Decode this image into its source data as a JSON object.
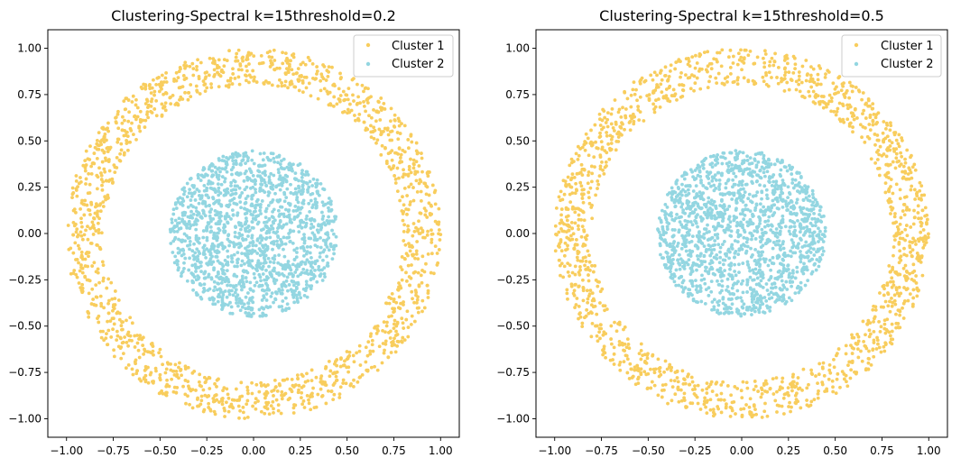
{
  "chart_data": [
    {
      "type": "scatter",
      "title": "Clustering-Spectral k=15threshold=0.2",
      "xlabel": "",
      "ylabel": "",
      "xlim": [
        -1.1,
        1.1
      ],
      "ylim": [
        -1.1,
        1.1
      ],
      "xticks": [
        "−1.00",
        "−0.75",
        "−0.50",
        "−0.25",
        "0.00",
        "0.25",
        "0.50",
        "0.75",
        "1.00"
      ],
      "yticks": [
        "1.00",
        "0.75",
        "0.50",
        "0.25",
        "0.00",
        "−0.25",
        "−0.50",
        "−0.75",
        "−1.00"
      ],
      "grid": false,
      "legend_position": "top-right",
      "series": [
        {
          "name": "Cluster 1",
          "color": "#f8cd5d",
          "shape": "annulus",
          "center": [
            0,
            0
          ],
          "inner_radius": 0.8,
          "outer_radius": 1.0,
          "count": 1500
        },
        {
          "name": "Cluster 2",
          "color": "#93d6e1",
          "shape": "disk",
          "center": [
            0,
            0
          ],
          "radius": 0.45,
          "count": 1500
        }
      ]
    },
    {
      "type": "scatter",
      "title": "Clustering-Spectral k=15threshold=0.5",
      "xlabel": "",
      "ylabel": "",
      "xlim": [
        -1.1,
        1.1
      ],
      "ylim": [
        -1.1,
        1.1
      ],
      "xticks": [
        "−1.00",
        "−0.75",
        "−0.50",
        "−0.25",
        "0.00",
        "0.25",
        "0.50",
        "0.75",
        "1.00"
      ],
      "yticks": [
        "1.00",
        "0.75",
        "0.50",
        "0.25",
        "0.00",
        "−0.25",
        "−0.50",
        "−0.75",
        "−1.00"
      ],
      "grid": false,
      "legend_position": "top-right",
      "series": [
        {
          "name": "Cluster 1",
          "color": "#f8cd5d",
          "shape": "annulus",
          "center": [
            0,
            0
          ],
          "inner_radius": 0.8,
          "outer_radius": 1.0,
          "count": 1500
        },
        {
          "name": "Cluster 2",
          "color": "#93d6e1",
          "shape": "disk",
          "center": [
            0,
            0
          ],
          "radius": 0.45,
          "count": 1500
        }
      ]
    }
  ]
}
